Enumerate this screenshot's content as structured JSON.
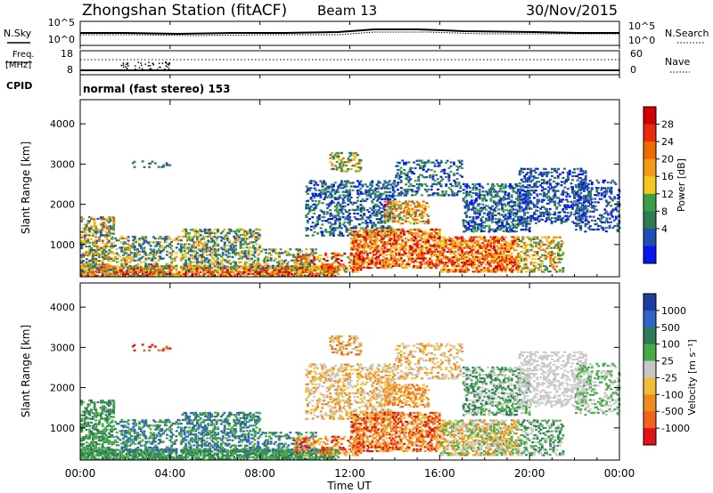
{
  "header": {
    "station": "Zhongshan Station (fitACF)",
    "beam": "Beam 13",
    "date": "30/Nov/2015"
  },
  "side_labels": {
    "nsky": "N.Sky",
    "freq_line1": "Freq.",
    "freq_line2": "[MHz]",
    "cpid": "CPID",
    "nsearch": "N.Search",
    "nave": "Nave"
  },
  "cpid_text": "normal (fast stereo) 153",
  "noise_panel": {
    "left_ticks": [
      "10^5",
      "10^0"
    ],
    "right_ticks": [
      "10^5",
      "10^0"
    ]
  },
  "freq_panel": {
    "left_ticks": [
      "18",
      "8"
    ],
    "right_ticks": [
      "60",
      "0"
    ]
  },
  "colors": {
    "power": [
      "#0a14f0",
      "#1f4fb4",
      "#2f7a55",
      "#3aa045",
      "#f2c81e",
      "#f59a14",
      "#f06a00",
      "#e82a10",
      "#d40000"
    ],
    "velocity": [
      "#1e3ca0",
      "#2f64c8",
      "#2f7a5a",
      "#46aa46",
      "#c8c8c8",
      "#f0be3c",
      "#f08c1e",
      "#f0641e",
      "#e01414"
    ]
  },
  "chart_data": [
    {
      "type": "heatmap",
      "panel": "power",
      "ylabel": "Slant Range [km]",
      "yticks": [
        "1000",
        "2000",
        "3000",
        "4000"
      ],
      "ylim": [
        200,
        4600
      ],
      "xlim": [
        0,
        24
      ],
      "xticks": [
        "00:00",
        "04:00",
        "08:00",
        "12:00",
        "16:00",
        "20:00",
        "00:00"
      ],
      "colorbar_label": "Power [dB]",
      "colorbar_ticks": [
        "4",
        "8",
        "12",
        "16",
        "20",
        "24",
        "28"
      ]
    },
    {
      "type": "heatmap",
      "panel": "velocity",
      "ylabel": "Slant Range [km]",
      "yticks": [
        "1000",
        "2000",
        "3000",
        "4000"
      ],
      "ylim": [
        200,
        4600
      ],
      "xlim": [
        0,
        24
      ],
      "xticks": [
        "00:00",
        "04:00",
        "08:00",
        "12:00",
        "16:00",
        "20:00",
        "00:00"
      ],
      "xlabel": "Time UT",
      "colorbar_label": "Velocity [m s⁻¹]",
      "colorbar_ticks": [
        "1000",
        "500",
        "100",
        "25",
        "-25",
        "-100",
        "-500",
        "-1000"
      ]
    }
  ]
}
